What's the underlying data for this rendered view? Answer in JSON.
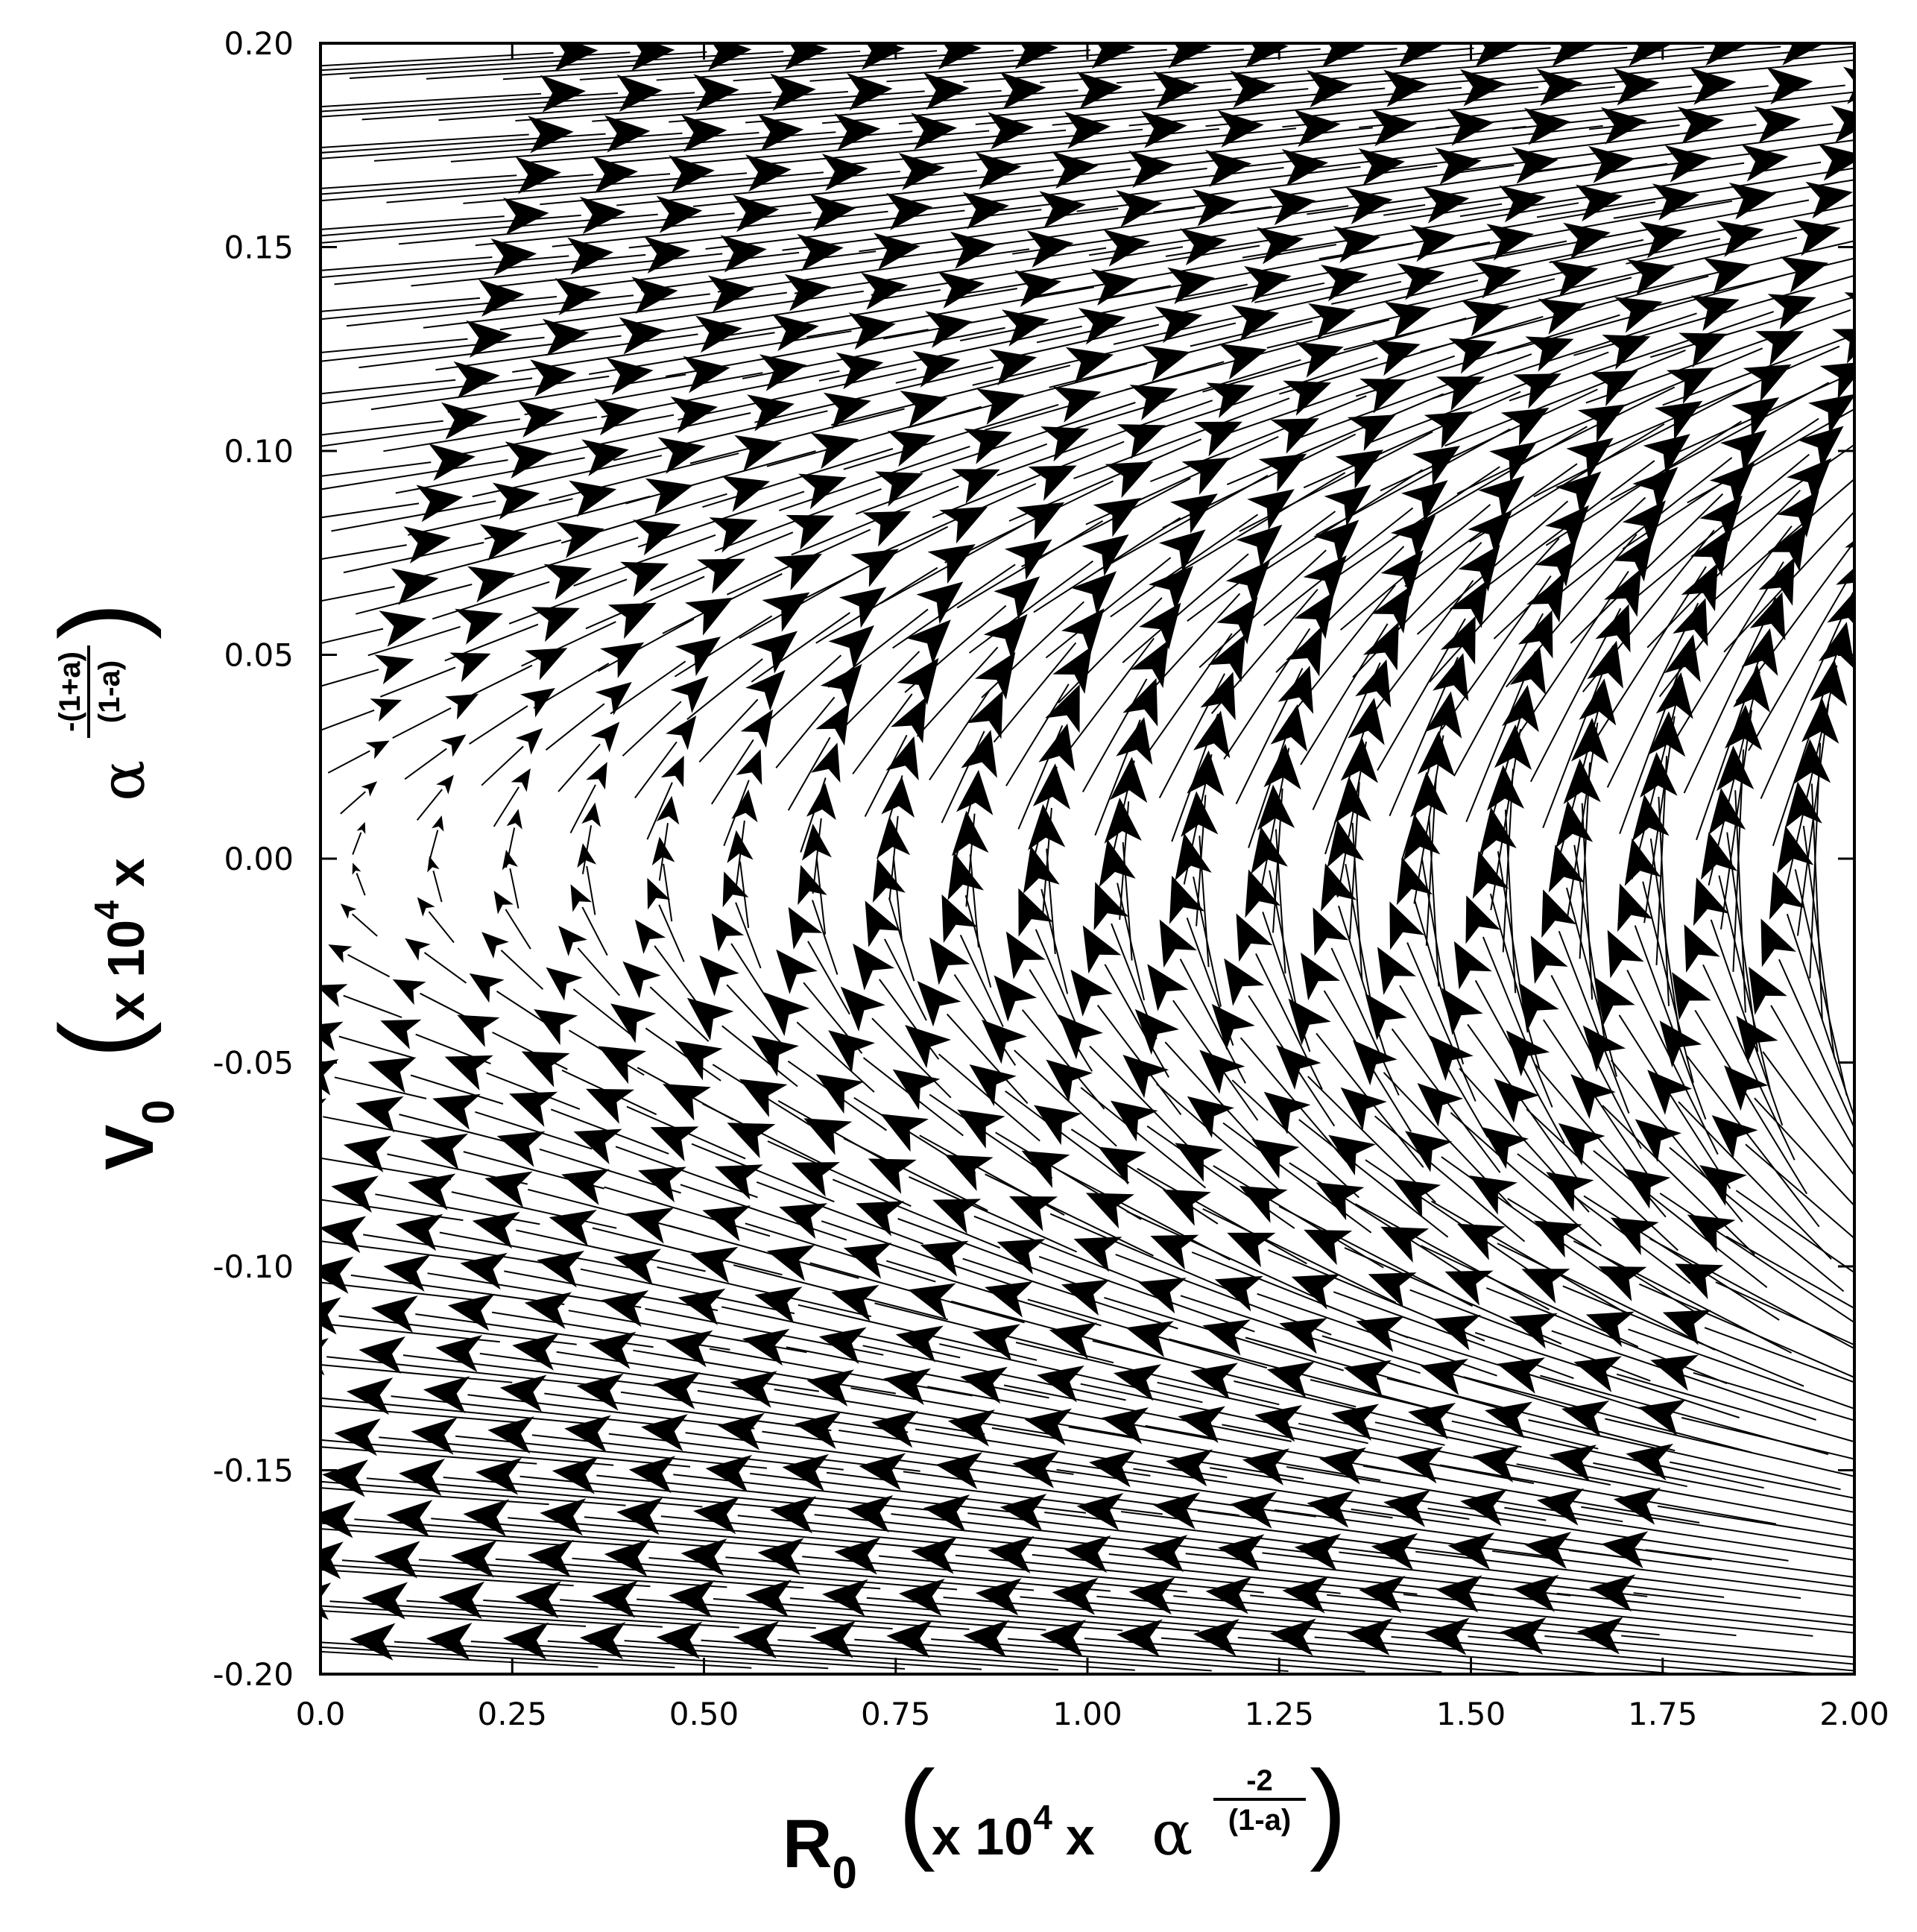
{
  "chart_data": {
    "type": "vector_field",
    "title": "",
    "x_axis": {
      "range": [
        0.0,
        2.0
      ],
      "ticks": [
        "0.0",
        "0.25",
        "0.50",
        "0.75",
        "1.00",
        "1.25",
        "1.50",
        "1.75",
        "2.00"
      ],
      "tick_values": [
        0.0,
        0.25,
        0.5,
        0.75,
        1.0,
        1.25,
        1.5,
        1.75,
        2.0
      ],
      "label": {
        "symbol": "R",
        "subscript": "0",
        "factor": "x 10",
        "power": "4",
        "times": "x",
        "greek": "α",
        "exp_numerator": "-2",
        "exp_denominator": "(1-a)"
      }
    },
    "y_axis": {
      "range": [
        -0.2,
        0.2
      ],
      "ticks": [
        "0.20",
        "0.15",
        "0.10",
        "0.05",
        "0.00",
        "-0.05",
        "-0.10",
        "-0.15",
        "-0.20"
      ],
      "tick_values": [
        0.2,
        0.15,
        0.1,
        0.05,
        0.0,
        -0.05,
        -0.1,
        -0.15,
        -0.2
      ],
      "label": {
        "symbol": "V",
        "subscript": "0",
        "factor": "x 10",
        "power": "4",
        "times": "x",
        "greek": "α",
        "exp_numerator": "-(1+a)",
        "exp_denominator": "(1-a)"
      }
    },
    "field": {
      "description_of_flow": "arrows point right for V>0 and left for V<0, curving upward near V=0",
      "grid_x_start": 0.05,
      "grid_x_step": 0.1,
      "grid_x_count": 20,
      "grid_y_start": -0.195,
      "grid_y_step": 0.01,
      "grid_y_count": 40,
      "samples": [
        {
          "x": 0.25,
          "y": 0.18,
          "u": 0.09,
          "v": 0.004
        },
        {
          "x": 1.0,
          "y": 0.1,
          "u": 0.1,
          "v": 0.02
        },
        {
          "x": 1.5,
          "y": 0.0,
          "u": 0.0,
          "v": 0.02
        },
        {
          "x": 1.0,
          "y": -0.1,
          "u": -0.1,
          "v": 0.02
        },
        {
          "x": 0.25,
          "y": -0.18,
          "u": -0.09,
          "v": 0.004
        }
      ]
    },
    "grid": false,
    "legend": "none"
  }
}
